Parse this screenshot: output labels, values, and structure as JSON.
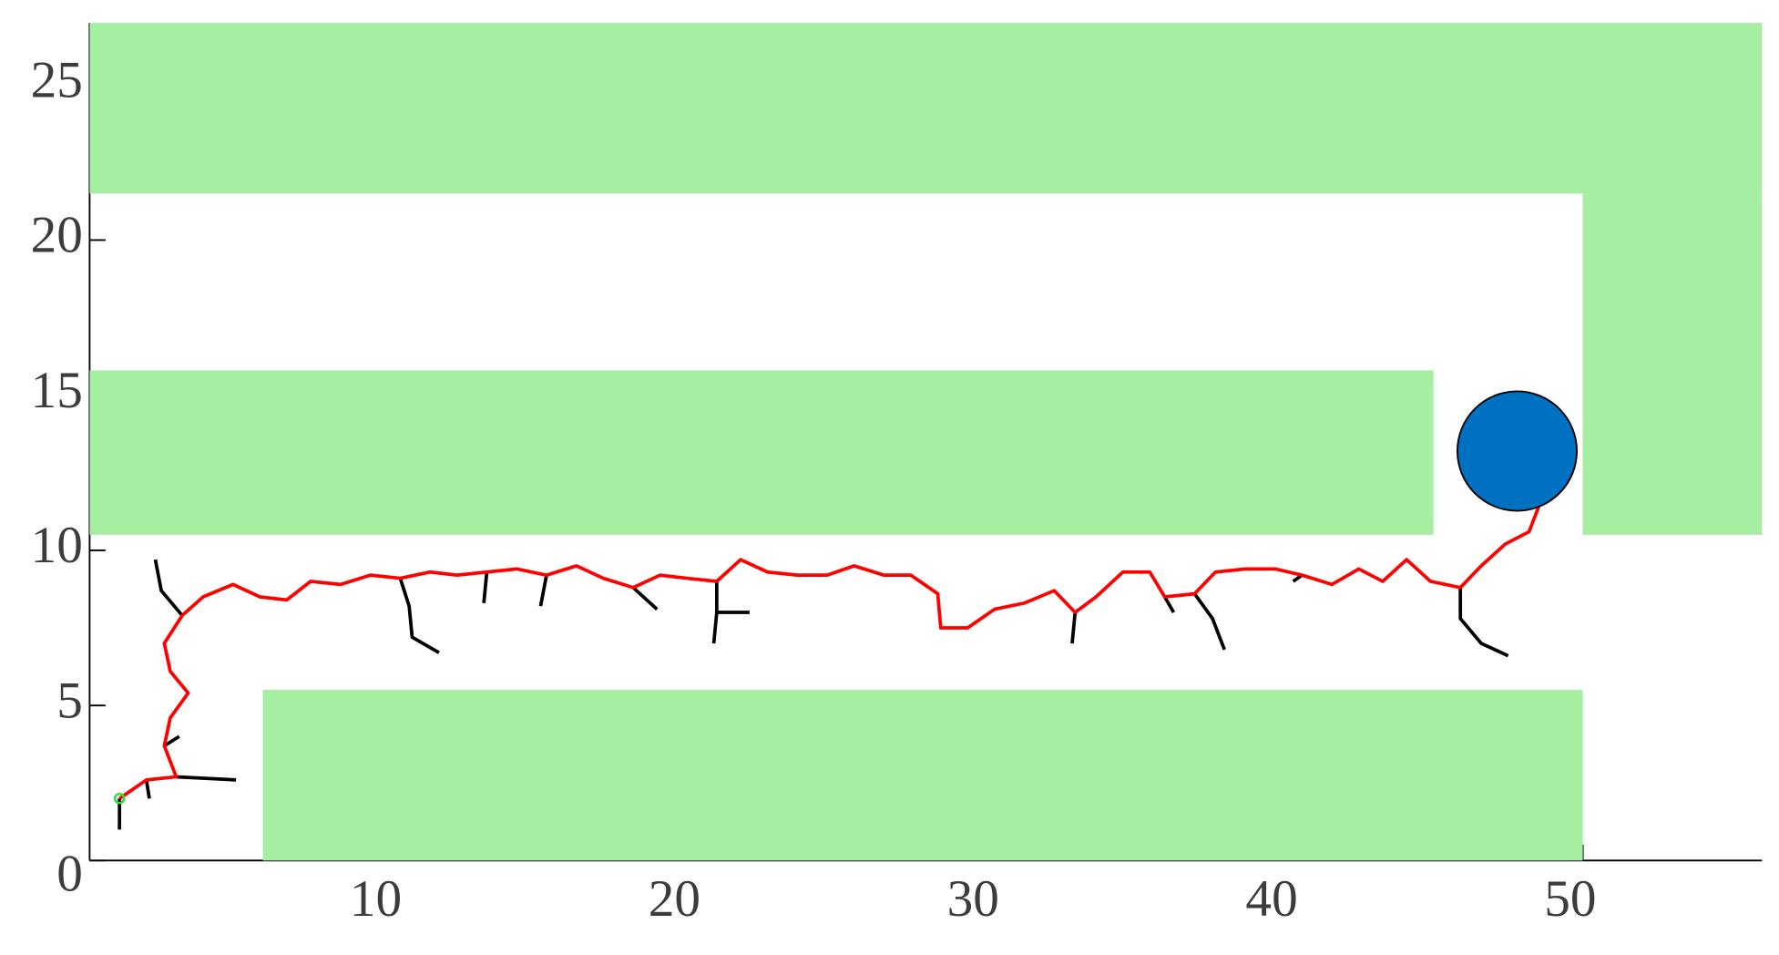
{
  "chart_data": {
    "type": "path",
    "xlim": [
      0,
      56
    ],
    "ylim": [
      0,
      27
    ],
    "xticks": [
      10,
      20,
      30,
      40,
      50
    ],
    "yticks": [
      0,
      5,
      10,
      15,
      20,
      25
    ],
    "obstacle_color": "#a6eea2",
    "obstacles": [
      {
        "x": [
          0,
          56
        ],
        "y": [
          21.5,
          27
        ]
      },
      {
        "x": [
          50,
          56
        ],
        "y": [
          10.5,
          21.5
        ]
      },
      {
        "x": [
          0,
          45
        ],
        "y": [
          10.5,
          15.8
        ]
      },
      {
        "x": [
          5.8,
          50
        ],
        "y": [
          0,
          5.5
        ]
      }
    ],
    "goal": {
      "x": 47.8,
      "y": 13.2,
      "r": 2.0,
      "color": "#0070c0"
    },
    "start": {
      "x": 1.0,
      "y": 2.0,
      "color": "#33dd33"
    },
    "path": {
      "color": "#ff0000",
      "x": [
        1.0,
        1.9,
        2.9,
        2.5,
        2.7,
        3.3,
        2.7,
        2.5,
        3.1,
        3.8,
        4.8,
        5.7,
        6.6,
        7.4,
        8.4,
        9.4,
        10.4,
        11.4,
        12.3,
        13.3,
        14.3,
        15.3,
        16.3,
        17.2,
        18.2,
        19.1,
        20.0,
        21.0,
        21.8,
        22.7,
        23.7,
        24.7,
        25.6,
        26.6,
        27.5,
        28.4,
        28.5,
        29.4,
        30.3,
        31.3,
        32.3,
        33.0,
        33.7,
        34.6,
        35.5,
        36.0,
        37.0,
        37.7,
        38.7,
        39.7,
        40.6,
        41.6,
        42.5,
        43.3,
        44.1,
        44.9,
        45.9,
        46.6,
        47.4,
        48.2,
        48.6
      ],
      "y": [
        2.0,
        2.6,
        2.7,
        3.7,
        4.6,
        5.4,
        6.1,
        7.0,
        7.9,
        8.5,
        8.9,
        8.5,
        8.4,
        9.0,
        8.9,
        9.2,
        9.1,
        9.3,
        9.2,
        9.3,
        9.4,
        9.2,
        9.5,
        9.1,
        8.8,
        9.2,
        9.1,
        9.0,
        9.7,
        9.3,
        9.2,
        9.2,
        9.5,
        9.2,
        9.2,
        8.6,
        7.5,
        7.5,
        8.1,
        8.3,
        8.7,
        8.0,
        8.5,
        9.3,
        9.3,
        8.5,
        8.6,
        9.3,
        9.4,
        9.4,
        9.2,
        8.9,
        9.4,
        9.0,
        9.7,
        9.0,
        8.8,
        9.5,
        10.2,
        10.6,
        11.6
      ]
    },
    "tree_color": "#000000",
    "branches": [
      {
        "x": [
          1.0,
          1.0
        ],
        "y": [
          2.0,
          1.0
        ]
      },
      {
        "x": [
          1.9,
          2.0
        ],
        "y": [
          2.6,
          2.0
        ]
      },
      {
        "x": [
          2.9,
          4.9
        ],
        "y": [
          2.7,
          2.6
        ]
      },
      {
        "x": [
          2.5,
          3.0
        ],
        "y": [
          3.7,
          4.0
        ]
      },
      {
        "x": [
          3.1,
          2.4,
          2.2
        ],
        "y": [
          7.9,
          8.7,
          9.7
        ]
      },
      {
        "x": [
          10.4,
          10.7,
          10.8,
          11.7
        ],
        "y": [
          9.1,
          8.2,
          7.2,
          6.7
        ]
      },
      {
        "x": [
          13.3,
          13.2
        ],
        "y": [
          9.3,
          8.3
        ]
      },
      {
        "x": [
          15.3,
          15.1
        ],
        "y": [
          9.2,
          8.2
        ]
      },
      {
        "x": [
          18.2,
          19.0
        ],
        "y": [
          8.8,
          8.1
        ]
      },
      {
        "x": [
          21.0,
          21.0,
          20.9
        ],
        "y": [
          9.0,
          8.0,
          7.0
        ]
      },
      {
        "x": [
          21.0,
          22.1
        ],
        "y": [
          8.0,
          8.0
        ]
      },
      {
        "x": [
          33.0,
          32.9
        ],
        "y": [
          8.0,
          7.0
        ]
      },
      {
        "x": [
          36.0,
          36.3
        ],
        "y": [
          8.5,
          8.0
        ]
      },
      {
        "x": [
          37.0,
          37.6,
          38.0
        ],
        "y": [
          8.6,
          7.8,
          6.8
        ]
      },
      {
        "x": [
          40.6,
          40.3
        ],
        "y": [
          9.2,
          9.0
        ]
      },
      {
        "x": [
          45.9,
          45.9,
          46.6,
          47.5
        ],
        "y": [
          8.8,
          7.8,
          7.0,
          6.6
        ]
      }
    ]
  }
}
